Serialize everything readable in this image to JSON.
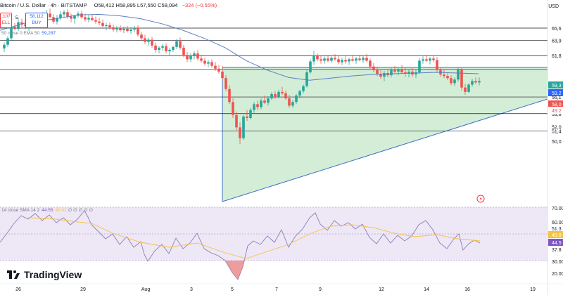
{
  "header": {
    "symbol": "Bitcoin / U.S. Dollar · 4h · BITSTAMP",
    "ohlc": "O58,412 H58,895 L57,550 C58,094",
    "change": "−324 (−0.55%)",
    "sell_price": ",107",
    "sell_label": "ELL",
    "spread": "5",
    "buy_price": "58,112",
    "buy_label": "BUY"
  },
  "indicators": {
    "ema_label": "50 close 0 EMA 50",
    "ema_value": "59,287",
    "rsi_label": "14 close SMA 14 2",
    "rsi_value": "44.55",
    "rsi_sma": "45.02",
    "rsi_extra": "∅  ∅      ∅  ∅  ∅"
  },
  "axis": {
    "currency": "USD",
    "price_labels": [
      {
        "text": "65,6",
        "price": 65600
      },
      {
        "text": "63,9",
        "price": 63900
      },
      {
        "text": "61,8",
        "price": 61800
      },
      {
        "text": "56,1",
        "price": 56100
      },
      {
        "text": "53,8",
        "price": 53800
      },
      {
        "text": "52,0",
        "price": 52000
      },
      {
        "text": "51,4",
        "price": 51400
      },
      {
        "text": "50,0",
        "price": 50000
      }
    ],
    "tag_labels": [
      {
        "text": "59,3",
        "color": "#26a69a"
      },
      {
        "text": "59,2",
        "color": "#2962ff"
      },
      {
        "text": "58,0",
        "color": "#ef5350"
      },
      {
        "text": "49:2",
        "color": "#ef5350"
      }
    ],
    "rsi_labels": [
      "70.00",
      "60.00",
      "51.3",
      "45.0",
      "44.5",
      "37.8",
      "30.00",
      "20.00"
    ],
    "time_labels": [
      "26",
      "29",
      "Aug",
      "3",
      "5",
      "7",
      "9",
      "12",
      "14",
      "16",
      "19"
    ]
  },
  "levels": [
    65600,
    63900,
    61800,
    59900,
    56100,
    53800,
    51400
  ],
  "colors": {
    "up": "#26a69a",
    "down": "#ef5350",
    "ema": "#5b7fc4",
    "triangle_fill": "#c9e8cd",
    "triangle_line": "#3b6fc7",
    "rsi_line": "#8a80b8",
    "rsi_sma": "#f6c244",
    "rsi_band": "#ede7f6"
  },
  "branding": "TradingView"
}
